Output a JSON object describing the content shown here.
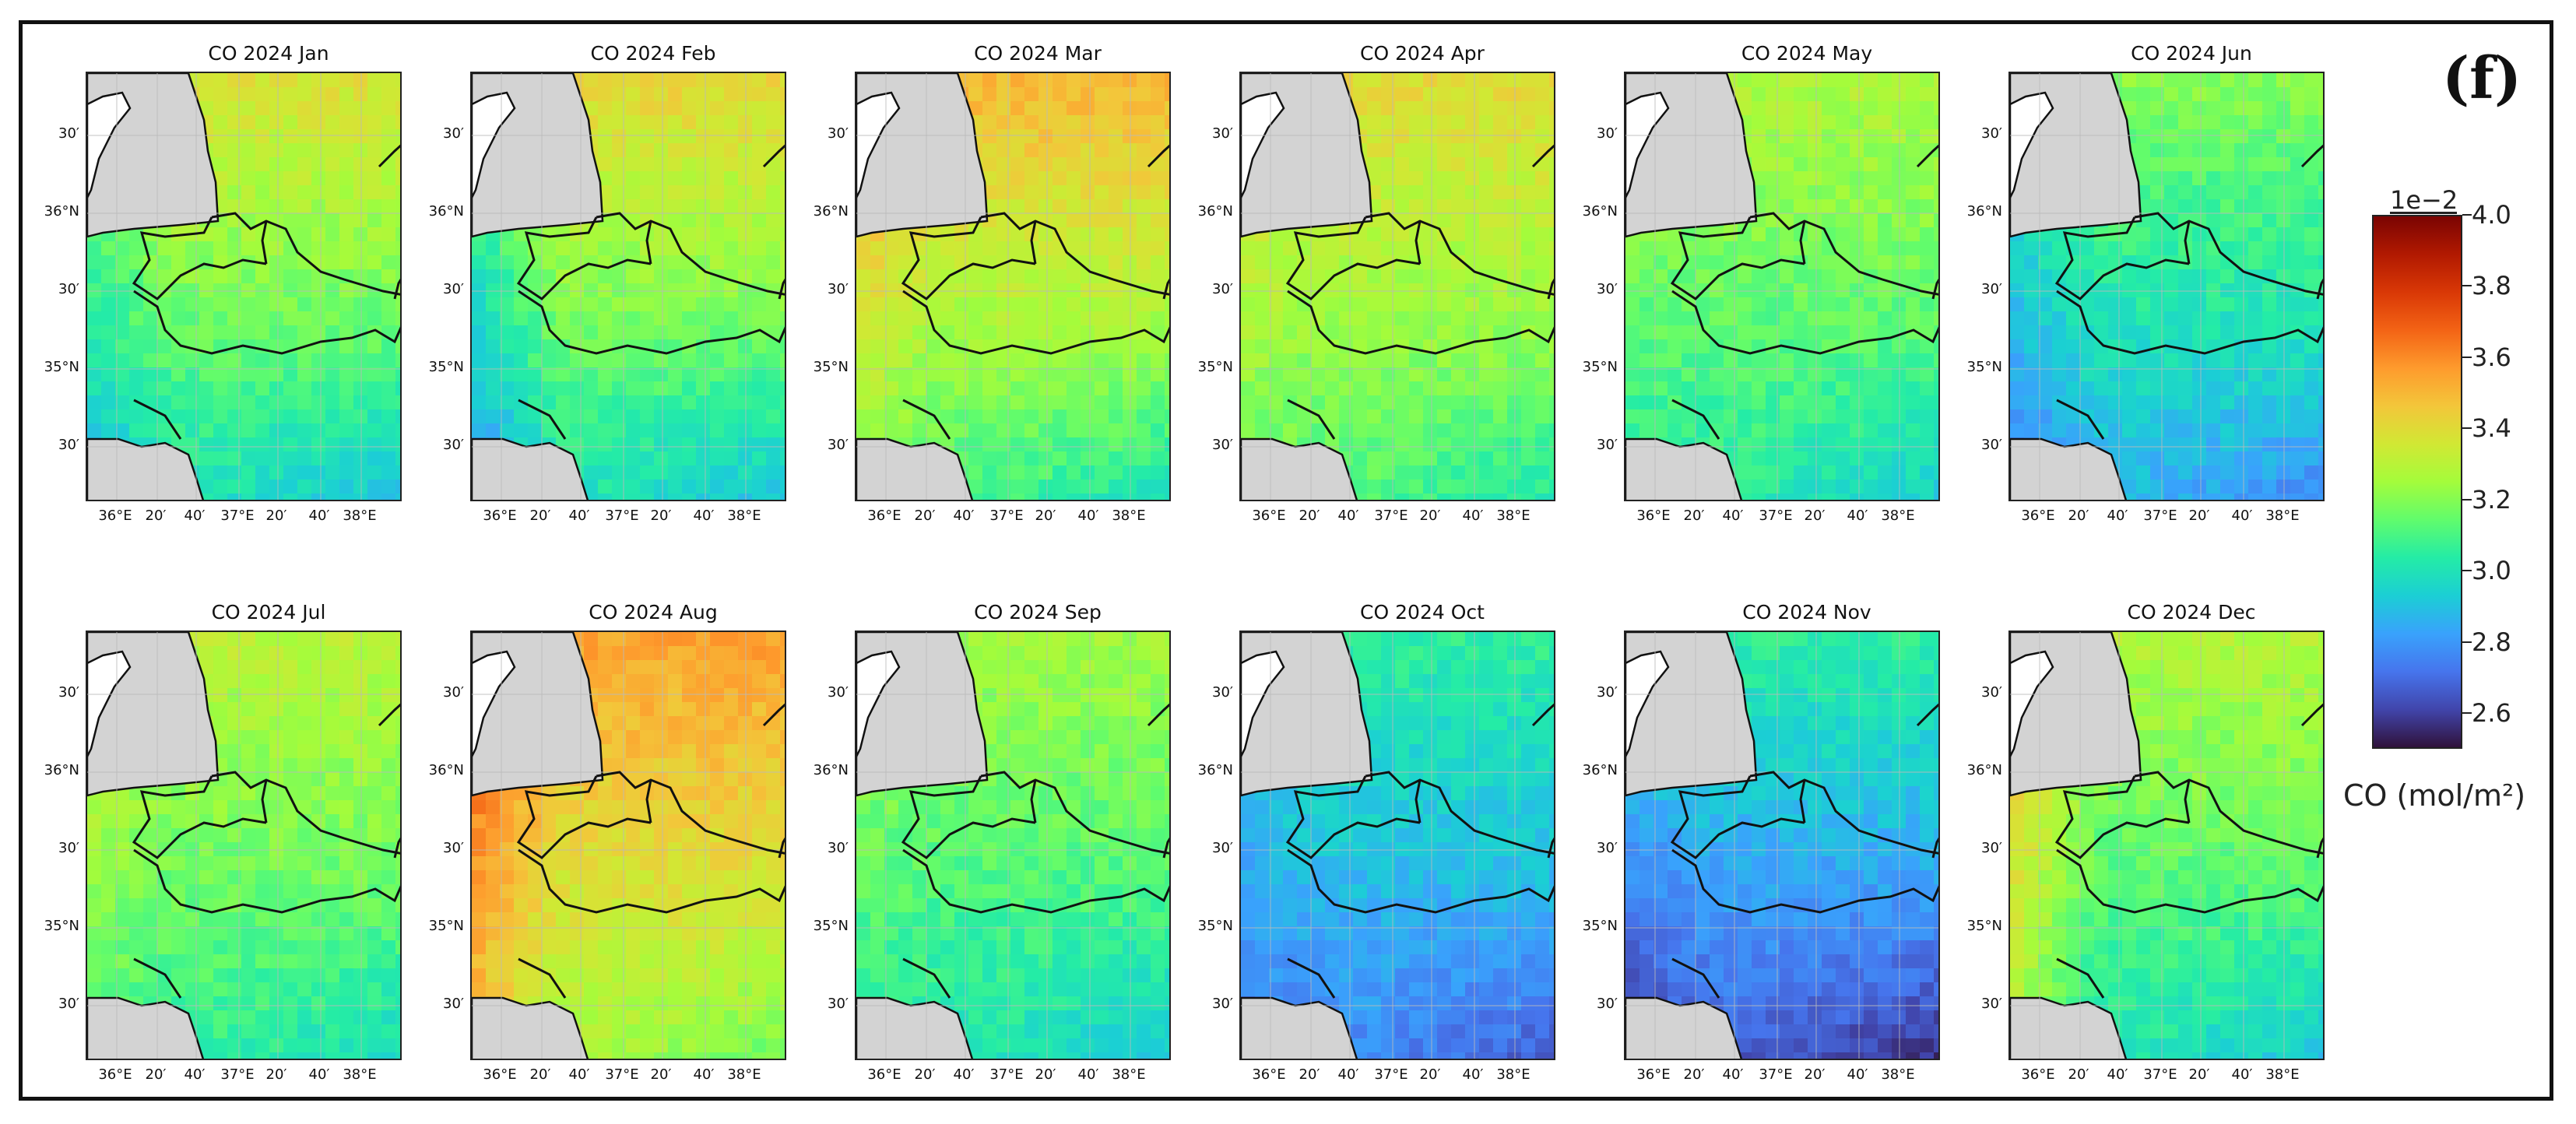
{
  "figure_label": "(f)",
  "colorbar": {
    "exponent": "1e−2",
    "ticks": [
      "4.0",
      "3.8",
      "3.6",
      "3.4",
      "3.2",
      "3.0",
      "2.8",
      "2.6"
    ],
    "tick_values": [
      4.0,
      3.8,
      3.6,
      3.4,
      3.2,
      3.0,
      2.8,
      2.6
    ],
    "min": 2.5,
    "max": 4.0,
    "label": "CO (mol/m²)",
    "colormap": [
      "#30123b",
      "#4145ab",
      "#4675ed",
      "#39a2fc",
      "#1bcfd4",
      "#24eca6",
      "#61fc6c",
      "#a4fc3b",
      "#d1e834",
      "#f3c63a",
      "#fe9b2d",
      "#f36315",
      "#d93806",
      "#b11901",
      "#7a0402"
    ],
    "colors": {
      "land_mask": "#d3d3d3",
      "border": "#111111",
      "frame": "#111111"
    }
  },
  "axes": {
    "y_labels": [
      "30′",
      "36°N",
      "30′",
      "35°N",
      "30′"
    ],
    "x_labels": [
      "36°E",
      "20′",
      "40′",
      "37°E",
      "20′",
      "40′",
      "38°E"
    ]
  },
  "chart_data": {
    "type": "heatmap",
    "variable": "CO column density",
    "units": "mol/m²",
    "scale": "1e-2",
    "panels": [
      {
        "title": "CO 2024 Jan",
        "mean": 3.22,
        "north": 3.38,
        "south": 2.98,
        "west": 3.1
      },
      {
        "title": "CO 2024 Feb",
        "mean": 3.26,
        "north": 3.42,
        "south": 2.98,
        "west": 3.05
      },
      {
        "title": "CO 2024 Mar",
        "mean": 3.36,
        "north": 3.5,
        "south": 3.08,
        "west": 3.45
      },
      {
        "title": "CO 2024 Apr",
        "mean": 3.32,
        "north": 3.4,
        "south": 3.1,
        "west": 3.35
      },
      {
        "title": "CO 2024 May",
        "mean": 3.2,
        "north": 3.28,
        "south": 3.02,
        "west": 3.2
      },
      {
        "title": "CO 2024 Jun",
        "mean": 3.12,
        "north": 3.2,
        "south": 2.85,
        "west": 3.0
      },
      {
        "title": "CO 2024 Jul",
        "mean": 3.24,
        "north": 3.3,
        "south": 3.05,
        "west": 3.3
      },
      {
        "title": "CO 2024 Aug",
        "mean": 3.44,
        "north": 3.55,
        "south": 3.25,
        "west": 3.62
      },
      {
        "title": "CO 2024 Sep",
        "mean": 3.18,
        "north": 3.25,
        "south": 3.0,
        "west": 3.2
      },
      {
        "title": "CO 2024 Oct",
        "mean": 3.0,
        "north": 3.05,
        "south": 2.75,
        "west": 2.95
      },
      {
        "title": "CO 2024 Nov",
        "mean": 2.98,
        "north": 3.05,
        "south": 2.65,
        "west": 2.92
      },
      {
        "title": "CO 2024 Dec",
        "mean": 3.22,
        "north": 3.28,
        "south": 3.0,
        "west": 3.45
      }
    ]
  }
}
